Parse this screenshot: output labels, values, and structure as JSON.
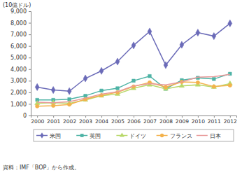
{
  "chart_data": {
    "type": "line",
    "y_label": "(10億ドル)",
    "source": "資料：IMF「BOP」から作成。",
    "categories": [
      "2000",
      "2001",
      "2002",
      "2003",
      "2004",
      "2005",
      "2006",
      "2007",
      "2008",
      "2009",
      "2010",
      "2011",
      "2012"
    ],
    "series": [
      {
        "name": "米国",
        "color": "#6b6bb8",
        "marker": "diamond",
        "values": [
          2450,
          2200,
          2100,
          3200,
          3850,
          4650,
          6050,
          7250,
          4350,
          6100,
          7150,
          6850,
          7950
        ]
      },
      {
        "name": "英国",
        "color": "#4db3a5",
        "marker": "square",
        "values": [
          1350,
          1350,
          1400,
          1700,
          2150,
          2350,
          3000,
          3400,
          2300,
          3050,
          3250,
          3150,
          3600
        ]
      },
      {
        "name": "ドイツ",
        "color": "#b8d86a",
        "marker": "triangle",
        "values": [
          1050,
          1100,
          1050,
          1350,
          1700,
          1850,
          2350,
          2650,
          2300,
          2550,
          2650,
          2450,
          2750
        ]
      },
      {
        "name": "フランス",
        "color": "#f3b24c",
        "marker": "circle",
        "values": [
          800,
          850,
          950,
          1400,
          1750,
          2000,
          2500,
          2850,
          2450,
          2900,
          2850,
          2500,
          2600
        ]
      },
      {
        "name": "日本",
        "color": "#e89a9a",
        "marker": "none",
        "values": [
          1150,
          1100,
          1200,
          1500,
          1850,
          2050,
          2550,
          2750,
          2650,
          2900,
          3300,
          3350,
          3550
        ]
      }
    ],
    "ylim": [
      0,
      9000
    ],
    "yticks": [
      0,
      {
        "value": 1000,
        "label": "1,000"
      },
      {
        "value": 2000,
        "label": "2,000"
      },
      {
        "value": 3000,
        "label": "3,000"
      },
      {
        "value": 4000,
        "label": "4,000"
      },
      {
        "value": 5000,
        "label": "5,000"
      },
      {
        "value": 6000,
        "label": "6,000"
      },
      {
        "value": 7000,
        "label": "7,000"
      },
      {
        "value": 8000,
        "label": "8,000"
      },
      {
        "value": 9000,
        "label": "9,000"
      }
    ],
    "grid": false,
    "legend": "bottom"
  }
}
